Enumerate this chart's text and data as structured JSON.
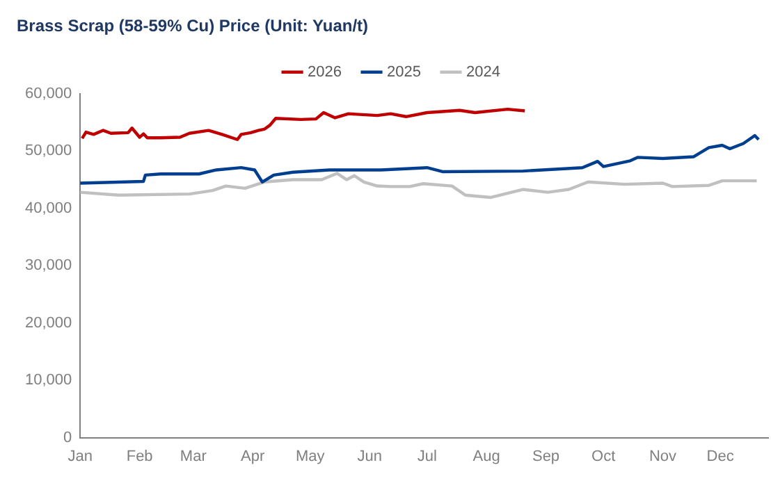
{
  "chart_data": {
    "type": "line",
    "title": "Brass Scrap (58-59% Cu) Price (Unit: Yuan/t)",
    "legend": "top",
    "xlim": [
      "--01-01",
      "--12-26"
    ],
    "xticks": [
      {
        "value": "--01-01",
        "label": "Jan"
      },
      {
        "value": "--02-01",
        "label": "Feb"
      },
      {
        "value": "--03-01",
        "label": "Mar"
      },
      {
        "value": "--04-01",
        "label": "Apr"
      },
      {
        "value": "--05-01",
        "label": "May"
      },
      {
        "value": "--06-01",
        "label": "Jun"
      },
      {
        "value": "--07-01",
        "label": "Jul"
      },
      {
        "value": "--08-01",
        "label": "Aug"
      },
      {
        "value": "--09-01",
        "label": "Sep"
      },
      {
        "value": "--10-01",
        "label": "Oct"
      },
      {
        "value": "--11-01",
        "label": "Nov"
      },
      {
        "value": "--12-01",
        "label": "Dec"
      }
    ],
    "ylim": [
      0,
      60000
    ],
    "yticks": [
      {
        "value": 0,
        "label": "0"
      },
      {
        "value": 10000,
        "label": "10,000"
      },
      {
        "value": 20000,
        "label": "20,000"
      },
      {
        "value": 30000,
        "label": "30,000"
      },
      {
        "value": 40000,
        "label": "40,000"
      },
      {
        "value": 50000,
        "label": "50,000"
      },
      {
        "value": 60000,
        "label": "60,000"
      }
    ],
    "series": [
      {
        "name": "2026",
        "color": "#c00000",
        "x": [
          "--01-02",
          "--01-04",
          "--01-08",
          "--01-13",
          "--01-17",
          "--01-26",
          "--01-28",
          "--02-01",
          "--02-03",
          "--02-05",
          "--02-12",
          "--02-22",
          "--02-27",
          "--03-09",
          "--03-16",
          "--03-24",
          "--03-26",
          "--03-31",
          "--04-04",
          "--04-07",
          "--04-10",
          "--04-13",
          "--04-26",
          "--05-04",
          "--05-08",
          "--05-14",
          "--05-21",
          "--06-05",
          "--06-12",
          "--06-20",
          "--07-01",
          "--07-18",
          "--07-26",
          "--08-12",
          "--08-21"
        ],
        "values": [
          52200,
          53300,
          52900,
          53600,
          53100,
          53200,
          54000,
          52400,
          53000,
          52300,
          52300,
          52400,
          53100,
          53600,
          52900,
          52000,
          52900,
          53200,
          53600,
          53800,
          54500,
          55700,
          55500,
          55600,
          56700,
          55800,
          56500,
          56200,
          56500,
          56000,
          56700,
          57100,
          56700,
          57300,
          57000
        ]
      },
      {
        "name": "2025",
        "color": "#003f8f",
        "x": [
          "--01-01",
          "--02-03",
          "--02-04",
          "--02-12",
          "--03-04",
          "--03-13",
          "--03-26",
          "--04-02",
          "--04-06",
          "--04-12",
          "--04-22",
          "--05-11",
          "--06-07",
          "--07-01",
          "--07-09",
          "--08-20",
          "--09-20",
          "--09-28",
          "--10-01",
          "--10-15",
          "--10-19",
          "--11-01",
          "--11-17",
          "--11-25",
          "--12-02",
          "--12-06",
          "--12-13",
          "--12-19",
          "--12-21"
        ],
        "values": [
          44400,
          44700,
          45800,
          46000,
          46000,
          46700,
          47100,
          46700,
          44600,
          45800,
          46300,
          46700,
          46700,
          47100,
          46400,
          46500,
          47100,
          48200,
          47300,
          48300,
          48900,
          48700,
          49000,
          50600,
          51000,
          50400,
          51300,
          52700,
          52000
        ]
      },
      {
        "name": "2024",
        "color": "#c0c0c0",
        "x": [
          "--01-01",
          "--01-21",
          "--02-27",
          "--03-11",
          "--03-18",
          "--03-28",
          "--04-07",
          "--04-22",
          "--05-07",
          "--05-15",
          "--05-20",
          "--05-24",
          "--05-29",
          "--06-05",
          "--06-12",
          "--06-22",
          "--06-29",
          "--07-14",
          "--07-21",
          "--08-03",
          "--08-20",
          "--09-02",
          "--09-13",
          "--09-23",
          "--10-12",
          "--11-01",
          "--11-06",
          "--11-25",
          "--12-02",
          "--12-20"
        ],
        "values": [
          42800,
          42300,
          42500,
          43100,
          43900,
          43500,
          44600,
          45000,
          45000,
          46100,
          45000,
          45700,
          44600,
          43900,
          43800,
          43800,
          44300,
          43900,
          42300,
          41900,
          43300,
          42800,
          43300,
          44600,
          44200,
          44400,
          43800,
          44000,
          44800,
          44800
        ]
      }
    ]
  }
}
